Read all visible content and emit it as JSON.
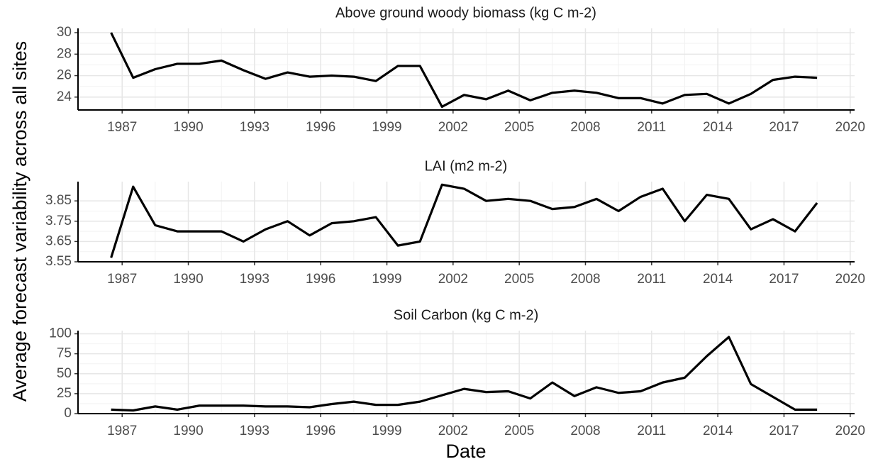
{
  "ylabel": "Average forecast variability across all sites",
  "xlabel": "Date",
  "chart_data": [
    {
      "type": "line",
      "title": "Above ground woody biomass (kg C m-2)",
      "color": "#000000",
      "grid": true,
      "x": [
        1986.5,
        1987.5,
        1988.5,
        1989.5,
        1990.5,
        1991.5,
        1992.5,
        1993.5,
        1994.5,
        1995.5,
        1996.5,
        1997.5,
        1998.5,
        1999.5,
        2000.5,
        2001.5,
        2002.5,
        2003.5,
        2004.5,
        2005.5,
        2006.5,
        2007.5,
        2008.5,
        2009.5,
        2010.5,
        2011.5,
        2012.5,
        2013.5,
        2014.5,
        2015.5,
        2016.5,
        2017.5,
        2018.5
      ],
      "values": [
        30,
        25.8,
        26.6,
        27.1,
        27.1,
        27.4,
        26.5,
        25.7,
        26.3,
        25.9,
        26.0,
        25.9,
        25.5,
        26.9,
        26.9,
        23.1,
        24.2,
        23.8,
        24.6,
        23.7,
        24.4,
        24.6,
        24.4,
        23.9,
        23.9,
        23.4,
        24.2,
        24.3,
        23.4,
        24.3,
        25.6,
        25.9,
        25.8
      ],
      "xlim": [
        1985,
        2020.2
      ],
      "ylim": [
        22.8,
        30.4
      ],
      "xticks": [
        1987,
        1990,
        1993,
        1996,
        1999,
        2002,
        2005,
        2008,
        2011,
        2014,
        2017,
        2020
      ],
      "yticks": [
        24,
        26,
        28,
        30
      ]
    },
    {
      "type": "line",
      "title": "LAI (m2 m-2)",
      "color": "#000000",
      "grid": true,
      "x": [
        1986.5,
        1987.5,
        1988.5,
        1989.5,
        1990.5,
        1991.5,
        1992.5,
        1993.5,
        1994.5,
        1995.5,
        1996.5,
        1997.5,
        1998.5,
        1999.5,
        2000.5,
        2001.5,
        2002.5,
        2003.5,
        2004.5,
        2005.5,
        2006.5,
        2007.5,
        2008.5,
        2009.5,
        2010.5,
        2011.5,
        2012.5,
        2013.5,
        2014.5,
        2015.5,
        2016.5,
        2017.5,
        2018.5
      ],
      "values": [
        3.57,
        3.92,
        3.73,
        3.7,
        3.7,
        3.7,
        3.65,
        3.71,
        3.75,
        3.68,
        3.74,
        3.75,
        3.77,
        3.63,
        3.65,
        3.93,
        3.91,
        3.85,
        3.86,
        3.85,
        3.81,
        3.82,
        3.86,
        3.8,
        3.87,
        3.91,
        3.75,
        3.88,
        3.86,
        3.71,
        3.76,
        3.7,
        3.84
      ],
      "xlim": [
        1985,
        2020.2
      ],
      "ylim": [
        3.55,
        3.945
      ],
      "xticks": [
        1987,
        1990,
        1993,
        1996,
        1999,
        2002,
        2005,
        2008,
        2011,
        2014,
        2017,
        2020
      ],
      "yticks": [
        3.55,
        3.65,
        3.75,
        3.85
      ]
    },
    {
      "type": "line",
      "title": "Soil Carbon (kg C m-2)",
      "color": "#000000",
      "grid": true,
      "x": [
        1986.5,
        1987.5,
        1988.5,
        1989.5,
        1990.5,
        1991.5,
        1992.5,
        1993.5,
        1994.5,
        1995.5,
        1996.5,
        1997.5,
        1998.5,
        1999.5,
        2000.5,
        2001.5,
        2002.5,
        2003.5,
        2004.5,
        2005.5,
        2006.5,
        2007.5,
        2008.5,
        2009.5,
        2010.5,
        2011.5,
        2012.5,
        2013.5,
        2014.5,
        2015.5,
        2016.5,
        2017.5,
        2018.5
      ],
      "values": [
        5,
        4,
        9,
        5,
        10,
        10,
        10,
        9,
        9,
        8,
        12,
        15,
        11,
        11,
        15,
        23,
        31,
        27,
        28,
        19,
        39,
        22,
        33,
        26,
        28,
        39,
        45,
        72,
        96,
        37,
        21,
        5,
        5
      ],
      "xlim": [
        1985,
        2020.2
      ],
      "ylim": [
        0,
        104
      ],
      "xticks": [
        1987,
        1990,
        1993,
        1996,
        1999,
        2002,
        2005,
        2008,
        2011,
        2014,
        2017,
        2020
      ],
      "yticks": [
        0,
        25,
        50,
        75,
        100
      ]
    }
  ]
}
